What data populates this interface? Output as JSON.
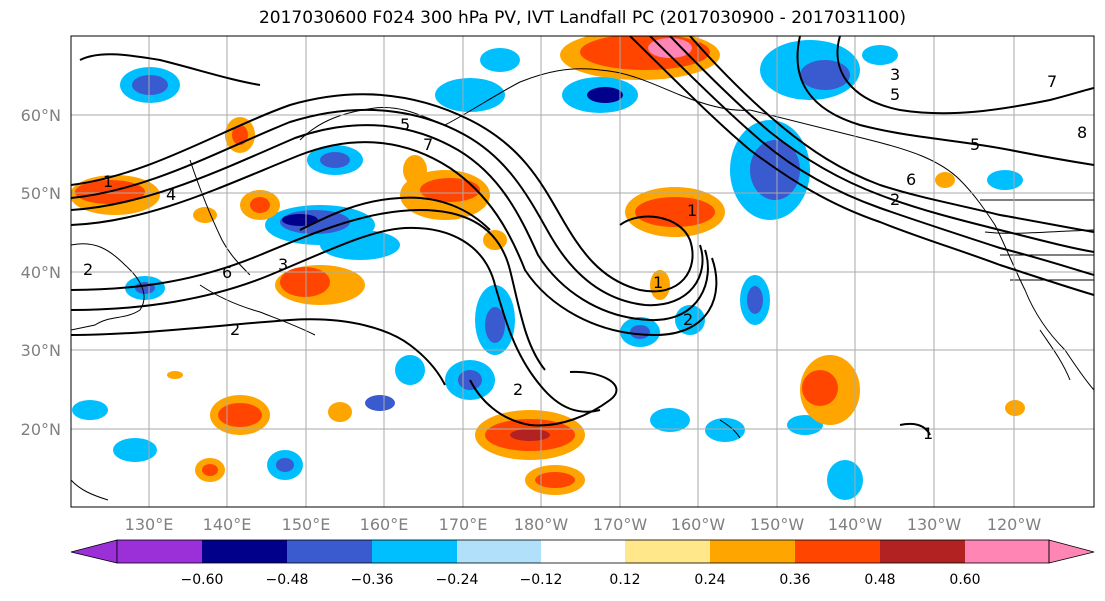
{
  "title": "2017030600 F024 300 hPa PV, IVT Landfall PC (2017030900 - 2017031100)",
  "map": {
    "lat_labels": [
      "60°N",
      "50°N",
      "40°N",
      "30°N",
      "20°N"
    ],
    "lon_labels": [
      "130°E",
      "140°E",
      "150°E",
      "160°E",
      "170°E",
      "180°W",
      "170°W",
      "160°W",
      "150°W",
      "140°W",
      "130°W",
      "120°W"
    ],
    "contour_labels": [
      "1",
      "2",
      "2",
      "2",
      "3",
      "4",
      "5",
      "6",
      "7",
      "1",
      "2",
      "1",
      "3",
      "5",
      "6",
      "7",
      "8",
      "5",
      "2",
      "1"
    ],
    "colors": {
      "ocean": "#ffffff",
      "grid": "#aaaaaa",
      "contour": "#000000",
      "tick_label": "#808080"
    }
  },
  "colorbar": {
    "tick_labels": [
      "−0.60",
      "−0.48",
      "−0.36",
      "−0.24",
      "−0.12",
      "0.12",
      "0.24",
      "0.36",
      "0.48",
      "0.60"
    ],
    "colors": [
      "#9b30d9",
      "#00008b",
      "#3a5bd0",
      "#00bfff",
      "#b0e0fa",
      "#ffffff",
      "#ffe78a",
      "#ffa500",
      "#ff4500",
      "#b22222",
      "#ff85b4"
    ]
  }
}
